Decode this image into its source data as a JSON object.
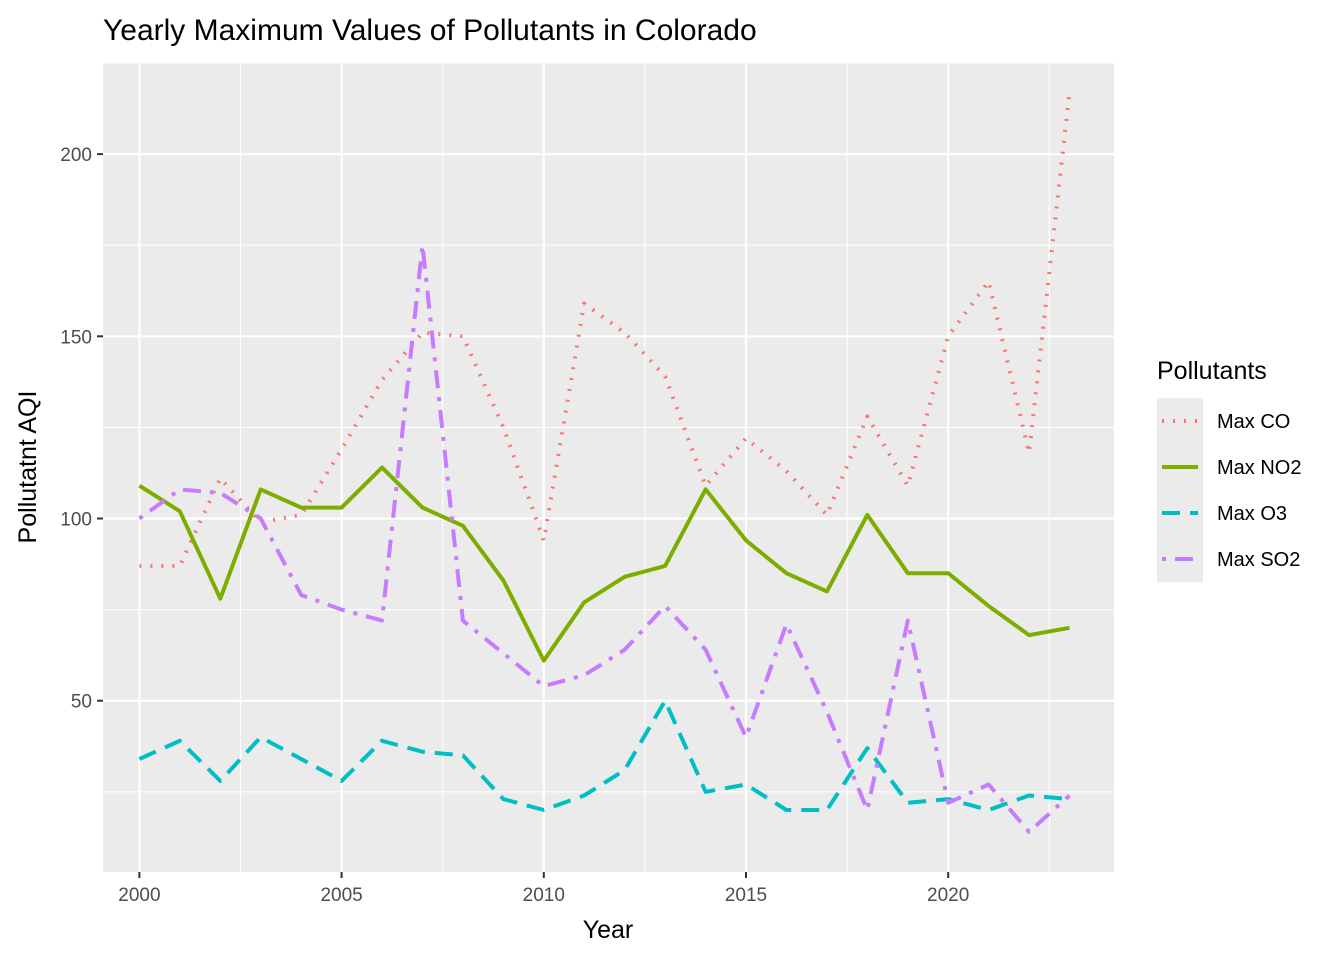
{
  "chart_data": {
    "type": "line",
    "title": "Yearly Maximum Values of Pollutants in Colorado",
    "xlabel": "Year",
    "ylabel": "Pollutatnt AQI",
    "xlim": [
      1999.1,
      2024.1
    ],
    "ylim": [
      3,
      225
    ],
    "x_ticks": [
      2000,
      2005,
      2010,
      2015,
      2020
    ],
    "y_ticks": [
      50,
      100,
      150,
      200
    ],
    "grid": true,
    "legend": {
      "title": "Pollutants",
      "position": "right"
    },
    "x": [
      2000,
      2001,
      2002,
      2003,
      2004,
      2005,
      2006,
      2007,
      2008,
      2009,
      2010,
      2011,
      2012,
      2013,
      2014,
      2015,
      2016,
      2017,
      2018,
      2019,
      2020,
      2021,
      2022,
      2023
    ],
    "series": [
      {
        "name": "Max CO",
        "color": "#F8766D",
        "dash": "dotted",
        "values": [
          87,
          87,
          111,
          99,
          101,
          119,
          138,
          151,
          150,
          125,
          94,
          159,
          151,
          139,
          109,
          122,
          113,
          101,
          128,
          109,
          150,
          165,
          118,
          217
        ]
      },
      {
        "name": "Max NO2",
        "color": "#7CAE00",
        "dash": "solid",
        "values": [
          109,
          102,
          78,
          108,
          103,
          103,
          114,
          103,
          98,
          83,
          61,
          77,
          84,
          87,
          108,
          94,
          85,
          80,
          101,
          85,
          85,
          76,
          68,
          70
        ]
      },
      {
        "name": "Max O3",
        "color": "#00BFC4",
        "dash": "dashed",
        "values": [
          34,
          39,
          28,
          40,
          34,
          28,
          39,
          36,
          35,
          23,
          20,
          24,
          31,
          50,
          25,
          27,
          20,
          20,
          37,
          22,
          23,
          20,
          24,
          23
        ]
      },
      {
        "name": "Max SO2",
        "color": "#C77CFF",
        "dash": "dotdash",
        "values": [
          100,
          108,
          107,
          100,
          79,
          75,
          72,
          175,
          72,
          63,
          54,
          57,
          64,
          76,
          64,
          40,
          71,
          47,
          20,
          72,
          22,
          27,
          14,
          24
        ]
      }
    ]
  }
}
